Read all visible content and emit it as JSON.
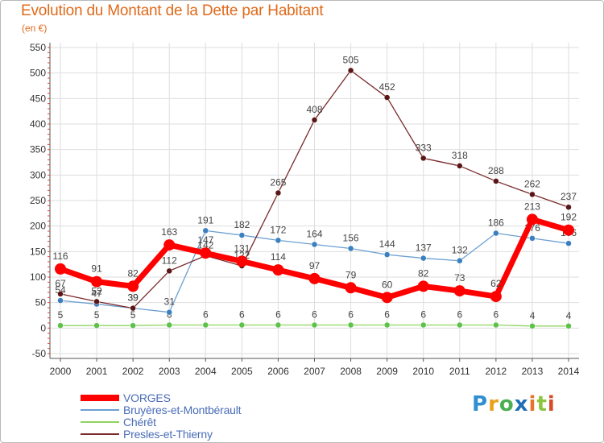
{
  "title": "Evolution du Montant de la Dette par Habitant",
  "subtitle": "(en €)",
  "logo": "Proxiti",
  "chart_data": {
    "type": "line",
    "title": "Evolution du Montant de la Dette par Habitant",
    "ylabel": "(en €)",
    "ylim": [
      -50,
      550
    ],
    "yticks": [
      -50,
      0,
      50,
      100,
      150,
      200,
      250,
      300,
      350,
      400,
      450,
      500,
      550
    ],
    "x": [
      "2000",
      "2001",
      "2002",
      "2003",
      "2004",
      "2005",
      "2006",
      "2007",
      "2008",
      "2009",
      "2010",
      "2011",
      "2012",
      "2013",
      "2014"
    ],
    "grid": true,
    "legend": "bottom-left",
    "series": [
      {
        "name": "VORGES",
        "color": "#ff0000",
        "values": [
          116,
          91,
          82,
          163,
          147,
          131,
          114,
          97,
          79,
          60,
          82,
          73,
          62,
          213,
          192
        ]
      },
      {
        "name": "Bruyères-et-Montbérault",
        "color": "#6b9fd1",
        "values": [
          54,
          47,
          39,
          31,
          191,
          182,
          172,
          164,
          156,
          144,
          137,
          132,
          186,
          176,
          166
        ]
      },
      {
        "name": "Chérêt",
        "color": "#8fd460",
        "values": [
          5,
          5,
          5,
          6,
          6,
          6,
          6,
          6,
          6,
          6,
          6,
          6,
          6,
          4,
          4
        ]
      },
      {
        "name": "Presles-et-Thierny",
        "color": "#7a2a2a",
        "values": [
          67,
          52,
          39,
          112,
          142,
          122,
          265,
          408,
          505,
          452,
          333,
          318,
          288,
          262,
          237
        ]
      }
    ]
  }
}
